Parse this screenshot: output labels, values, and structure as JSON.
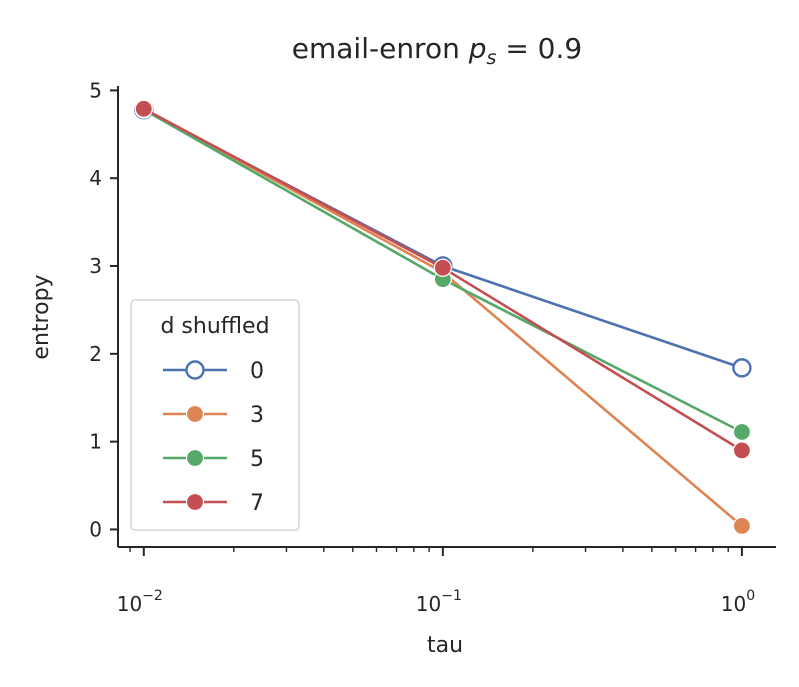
{
  "chart_data": {
    "type": "line",
    "title_prefix": "email-enron ",
    "title_math_var": "p",
    "title_math_sub": "s",
    "title_math_rest": " = 0.9",
    "xlabel": "tau",
    "ylabel": "entropy",
    "xscale": "log",
    "xlim": [
      0.0082,
      1.3
    ],
    "ylim": [
      -0.2,
      5.05
    ],
    "x": [
      0.01,
      0.1,
      1.0
    ],
    "xticks": [
      {
        "value": 0.01,
        "base": "10",
        "exp": "−2"
      },
      {
        "value": 0.1,
        "base": "10",
        "exp": "−1"
      },
      {
        "value": 1.0,
        "base": "10",
        "exp": "0"
      }
    ],
    "yticks": [
      "0",
      "1",
      "2",
      "3",
      "4",
      "5"
    ],
    "grid": false,
    "legend": {
      "title": "d shuffled",
      "placement": "lower-left"
    },
    "series": [
      {
        "name": "0",
        "color": "#4c72b0",
        "marker": "open-circle",
        "values": [
          4.78,
          3.0,
          1.84
        ]
      },
      {
        "name": "3",
        "color": "#dd8452",
        "marker": "filled-circle",
        "values": [
          4.79,
          2.93,
          0.04
        ]
      },
      {
        "name": "5",
        "color": "#55a868",
        "marker": "filled-circle",
        "values": [
          4.78,
          2.85,
          1.11
        ]
      },
      {
        "name": "7",
        "color": "#c44e52",
        "marker": "filled-circle",
        "values": [
          4.79,
          2.98,
          0.9
        ]
      }
    ]
  }
}
